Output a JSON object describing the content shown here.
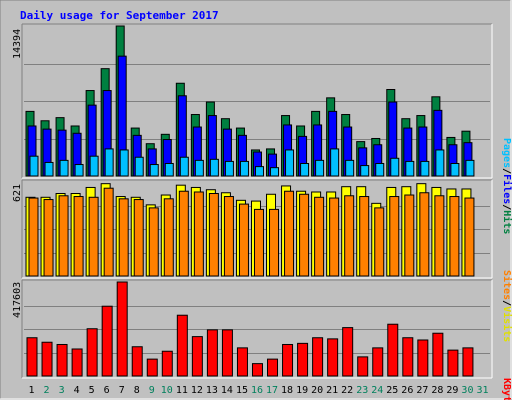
{
  "title": "Daily usage for September 2017",
  "colors": {
    "background": "#c0c0c0",
    "title": "#0000ff",
    "hits": "#008040",
    "files": "#0000ff",
    "pages": "#00c0ff",
    "visits": "#ffff00",
    "sites": "#ff8000",
    "kbytes": "#ff0000",
    "weekday_label": "#000000",
    "weekend_label": "#00805c"
  },
  "right_labels": {
    "hits": "Hits",
    "files": "Files",
    "pages": "Pages",
    "sep": "/",
    "visits": "Visits",
    "sites": "Sites",
    "kbytes": "KBytes"
  },
  "chart_data": [
    {
      "type": "bar",
      "title": "Daily usage for September 2017",
      "scale_label": "14394",
      "ylim": [
        0,
        14394
      ],
      "categories": [
        "1",
        "2",
        "3",
        "4",
        "5",
        "6",
        "7",
        "8",
        "9",
        "10",
        "11",
        "12",
        "13",
        "14",
        "15",
        "16",
        "17",
        "18",
        "19",
        "20",
        "21",
        "22",
        "23",
        "24",
        "25",
        "26",
        "27",
        "28",
        "29",
        "30",
        "31"
      ],
      "weekend_days": [
        "2",
        "3",
        "9",
        "10",
        "16",
        "17",
        "23",
        "24",
        "30",
        "31"
      ],
      "series": [
        {
          "name": "Hits",
          "values": [
            6200,
            5300,
            5600,
            4800,
            8200,
            10300,
            14394,
            4600,
            3100,
            4000,
            8900,
            5900,
            7100,
            5500,
            4600,
            2500,
            2600,
            5800,
            4800,
            6200,
            7500,
            5900,
            3300,
            3600,
            8300,
            5500,
            5800,
            7600,
            3700,
            4300,
            0
          ]
        },
        {
          "name": "Files",
          "values": [
            4800,
            4500,
            4400,
            4100,
            6800,
            8200,
            11500,
            3900,
            2600,
            3500,
            7700,
            4700,
            5800,
            4500,
            3900,
            2300,
            2100,
            4900,
            3800,
            4900,
            6200,
            4700,
            2700,
            3000,
            7100,
            4600,
            4700,
            6300,
            3000,
            3200,
            0
          ]
        },
        {
          "name": "Pages",
          "values": [
            1900,
            1300,
            1500,
            1100,
            1900,
            2600,
            2500,
            1800,
            1100,
            1200,
            1800,
            1500,
            1600,
            1400,
            1400,
            900,
            800,
            2500,
            1200,
            1500,
            2600,
            1500,
            1000,
            1200,
            1700,
            1400,
            1400,
            2500,
            1200,
            1500,
            0
          ]
        }
      ]
    },
    {
      "type": "bar",
      "scale_label": "621",
      "ylim": [
        0,
        621
      ],
      "categories": [
        "1",
        "2",
        "3",
        "4",
        "5",
        "6",
        "7",
        "8",
        "9",
        "10",
        "11",
        "12",
        "13",
        "14",
        "15",
        "16",
        "17",
        "18",
        "19",
        "20",
        "21",
        "22",
        "23",
        "24",
        "25",
        "26",
        "27",
        "28",
        "29",
        "30",
        "31"
      ],
      "series": [
        {
          "name": "Visits",
          "values": [
            520,
            520,
            545,
            545,
            585,
            610,
            525,
            520,
            470,
            535,
            600,
            585,
            570,
            550,
            500,
            495,
            540,
            595,
            560,
            555,
            555,
            590,
            590,
            480,
            585,
            590,
            610,
            585,
            575,
            575,
            0
          ]
        },
        {
          "name": "Sites",
          "values": [
            515,
            505,
            530,
            525,
            520,
            580,
            510,
            505,
            450,
            510,
            560,
            555,
            545,
            525,
            475,
            440,
            440,
            560,
            540,
            520,
            515,
            530,
            525,
            450,
            525,
            535,
            550,
            530,
            525,
            515,
            0
          ]
        }
      ]
    },
    {
      "type": "bar",
      "scale_label": "417603",
      "ylim": [
        0,
        417603
      ],
      "categories": [
        "1",
        "2",
        "3",
        "4",
        "5",
        "6",
        "7",
        "8",
        "9",
        "10",
        "11",
        "12",
        "13",
        "14",
        "15",
        "16",
        "17",
        "18",
        "19",
        "20",
        "21",
        "22",
        "23",
        "24",
        "25",
        "26",
        "27",
        "28",
        "29",
        "30",
        "31"
      ],
      "series": [
        {
          "name": "KBytes",
          "values": [
            170000,
            150000,
            140000,
            120000,
            210000,
            310000,
            417603,
            130000,
            75000,
            110000,
            270000,
            175000,
            205000,
            205000,
            125000,
            55000,
            75000,
            140000,
            145000,
            170000,
            165000,
            215000,
            85000,
            125000,
            230000,
            170000,
            160000,
            190000,
            115000,
            125000,
            0
          ]
        }
      ]
    }
  ]
}
